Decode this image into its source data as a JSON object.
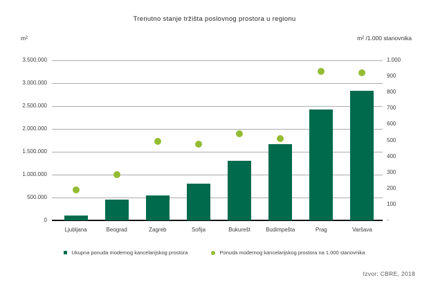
{
  "header": {
    "title": "Trenutno stanje tržišta poslovnog prostora u regionu",
    "left_axis_unit": "m²",
    "right_axis_unit": "m² /1.000 stanovnika"
  },
  "footer": {
    "source": "Izvor: CBRE, 2018"
  },
  "colors": {
    "bar": "#006A4D",
    "point": "#94BC33",
    "gridline": "#ABABAB",
    "axis_line": "#141414",
    "text": "#3D3D3D",
    "source_text": "#595959"
  },
  "legend": [
    {
      "marker": "square",
      "color": "#006A4D",
      "label": "Ukupna ponuda modernog kancelarijskog prostora"
    },
    {
      "marker": "circle",
      "color": "#94BC33",
      "label": "Ponuda modernog kancelarijskog prostora na 1.000 stanovnika"
    }
  ],
  "chart_data": {
    "type": "bar",
    "subtype": "combo-bar-scatter",
    "title": "Trenutno stanje tržišta poslovnog prostora u regionu",
    "grid": "horizontal",
    "legend_position": "bottom",
    "categories": [
      "Ljubljana",
      "Beograd",
      "Zagreb",
      "Sofija",
      "Bukurešt",
      "Budimpešta",
      "Prag",
      "Varšava"
    ],
    "series": [
      {
        "name": "Ukupna ponuda modernog kancelarijskog prostora",
        "type": "bar",
        "axis": "left",
        "color": "#006A4D",
        "values": [
          100000,
          460000,
          550000,
          800000,
          1300000,
          1670000,
          2420000,
          2840000
        ]
      },
      {
        "name": "Ponuda modernog kancelarijskog prostora na 1.000 stanovnika",
        "type": "scatter",
        "axis": "right",
        "color": "#94BC33",
        "values": [
          190,
          285,
          495,
          475,
          540,
          510,
          930,
          920
        ]
      }
    ],
    "left_axis": {
      "unit": "m²",
      "min": 0,
      "max": 3500000,
      "step": 500000,
      "ticks": [
        {
          "value": 0,
          "label": "0"
        },
        {
          "value": 500000,
          "label": "500.000"
        },
        {
          "value": 1000000,
          "label": "1.000.000"
        },
        {
          "value": 1500000,
          "label": "1.500.000"
        },
        {
          "value": 2000000,
          "label": "2.000.000"
        },
        {
          "value": 2500000,
          "label": "2.500.000"
        },
        {
          "value": 3000000,
          "label": "3.000.000"
        },
        {
          "value": 3500000,
          "label": "3.500.000"
        }
      ]
    },
    "right_axis": {
      "unit": "m² /1.000 stanovnika",
      "min": 0,
      "max": 1000,
      "step": 100,
      "ticks": [
        {
          "value": 0,
          "label": "-"
        },
        {
          "value": 100,
          "label": "100"
        },
        {
          "value": 200,
          "label": "200"
        },
        {
          "value": 300,
          "label": "300"
        },
        {
          "value": 400,
          "label": "400"
        },
        {
          "value": 500,
          "label": "500"
        },
        {
          "value": 600,
          "label": "600"
        },
        {
          "value": 700,
          "label": "700"
        },
        {
          "value": 800,
          "label": "800"
        },
        {
          "value": 900,
          "label": "900"
        },
        {
          "value": 1000,
          "label": "1.000"
        }
      ]
    }
  }
}
